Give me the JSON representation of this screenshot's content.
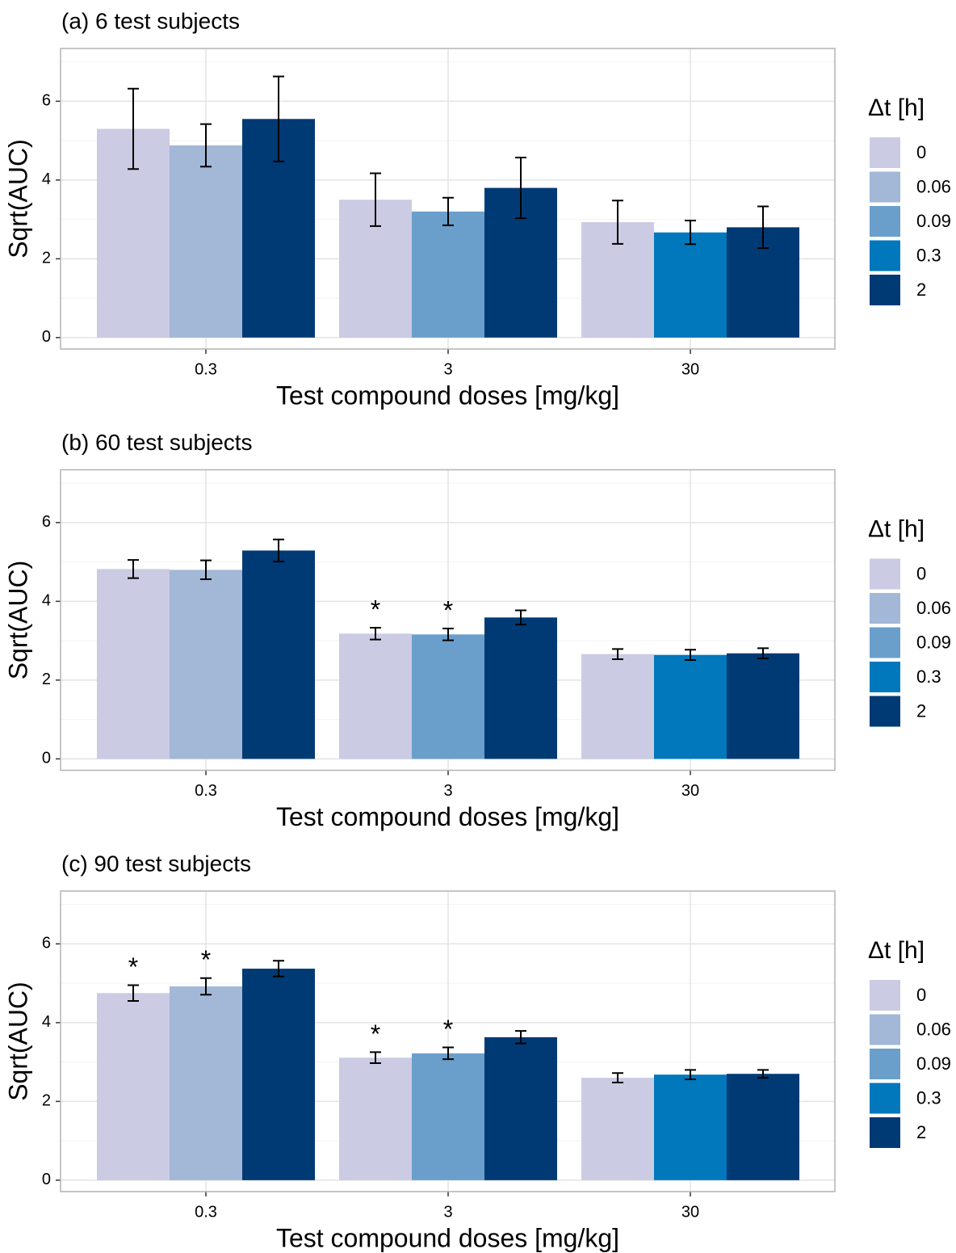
{
  "chart_data": [
    {
      "type": "bar",
      "title": "(a) 6 test subjects",
      "x_label": "Test compound doses [mg/kg]",
      "y_label": "Sqrt(AUC)",
      "legend_title": "Δt [h]",
      "legend": "right",
      "grid": true,
      "categories": [
        "0.3",
        "3",
        "30"
      ],
      "ylim": [
        -0.29,
        7.34
      ],
      "yticks": [
        0,
        2,
        4,
        6
      ],
      "minor_yticks": [
        1,
        3,
        5,
        7
      ],
      "series": [
        {
          "name": "0",
          "color": "#cbcbe3",
          "values": [
            5.3,
            3.5,
            2.93
          ],
          "errors": [
            1.02,
            0.67,
            0.55
          ],
          "significance": [
            null,
            null,
            null
          ]
        },
        {
          "name": "0.06",
          "color": "#a3b7d7",
          "values": [
            4.88,
            null,
            null
          ],
          "errors": [
            0.54,
            null,
            null
          ],
          "significance": [
            null,
            null,
            null
          ]
        },
        {
          "name": "0.09",
          "color": "#6a9fcc",
          "values": [
            null,
            3.2,
            null
          ],
          "errors": [
            null,
            0.35,
            null
          ],
          "significance": [
            null,
            null,
            null
          ]
        },
        {
          "name": "0.3",
          "color": "#0177bc",
          "values": [
            null,
            null,
            2.67
          ],
          "errors": [
            null,
            null,
            0.3
          ],
          "significance": [
            null,
            null,
            null
          ]
        },
        {
          "name": "2",
          "color": "#003a74",
          "values": [
            5.55,
            3.8,
            2.8
          ],
          "errors": [
            1.08,
            0.77,
            0.53
          ],
          "significance": [
            null,
            null,
            null
          ]
        }
      ]
    },
    {
      "type": "bar",
      "title": "(b) 60 test subjects",
      "x_label": "Test compound doses [mg/kg]",
      "y_label": "Sqrt(AUC)",
      "legend_title": "Δt [h]",
      "legend": "right",
      "grid": true,
      "categories": [
        "0.3",
        "3",
        "30"
      ],
      "ylim": [
        -0.29,
        7.34
      ],
      "yticks": [
        0,
        2,
        4,
        6
      ],
      "minor_yticks": [
        1,
        3,
        5,
        7
      ],
      "series": [
        {
          "name": "0",
          "color": "#cbcbe3",
          "values": [
            4.82,
            3.18,
            2.66
          ],
          "errors": [
            0.23,
            0.15,
            0.13
          ],
          "significance": [
            null,
            "*",
            null
          ]
        },
        {
          "name": "0.06",
          "color": "#a3b7d7",
          "values": [
            4.8,
            null,
            null
          ],
          "errors": [
            0.24,
            null,
            null
          ],
          "significance": [
            null,
            null,
            null
          ]
        },
        {
          "name": "0.09",
          "color": "#6a9fcc",
          "values": [
            null,
            3.16,
            null
          ],
          "errors": [
            null,
            0.15,
            null
          ],
          "significance": [
            null,
            "*",
            null
          ]
        },
        {
          "name": "0.3",
          "color": "#0177bc",
          "values": [
            null,
            null,
            2.64
          ],
          "errors": [
            null,
            null,
            0.13
          ],
          "significance": [
            null,
            null,
            null
          ]
        },
        {
          "name": "2",
          "color": "#003a74",
          "values": [
            5.29,
            3.59,
            2.68
          ],
          "errors": [
            0.28,
            0.18,
            0.13
          ],
          "significance": [
            null,
            null,
            null
          ]
        }
      ]
    },
    {
      "type": "bar",
      "title": "(c) 90 test subjects",
      "x_label": "Test compound doses [mg/kg]",
      "y_label": "Sqrt(AUC)",
      "legend_title": "Δt [h]",
      "legend": "right",
      "grid": true,
      "categories": [
        "0.3",
        "3",
        "30"
      ],
      "ylim": [
        -0.29,
        7.34
      ],
      "yticks": [
        0,
        2,
        4,
        6
      ],
      "minor_yticks": [
        1,
        3,
        5,
        7
      ],
      "series": [
        {
          "name": "0",
          "color": "#cbcbe3",
          "values": [
            4.75,
            3.11,
            2.6
          ],
          "errors": [
            0.2,
            0.14,
            0.12
          ],
          "significance": [
            "*",
            "*",
            null
          ]
        },
        {
          "name": "0.06",
          "color": "#a3b7d7",
          "values": [
            4.92,
            null,
            null
          ],
          "errors": [
            0.21,
            null,
            null
          ],
          "significance": [
            "*",
            null,
            null
          ]
        },
        {
          "name": "0.09",
          "color": "#6a9fcc",
          "values": [
            null,
            3.22,
            null
          ],
          "errors": [
            null,
            0.15,
            null
          ],
          "significance": [
            null,
            "*",
            null
          ]
        },
        {
          "name": "0.3",
          "color": "#0177bc",
          "values": [
            null,
            null,
            2.68
          ],
          "errors": [
            null,
            null,
            0.12
          ],
          "significance": [
            null,
            null,
            null
          ]
        },
        {
          "name": "2",
          "color": "#003a74",
          "values": [
            5.37,
            3.63,
            2.7
          ],
          "errors": [
            0.2,
            0.16,
            0.1
          ],
          "significance": [
            null,
            null,
            null
          ]
        }
      ]
    }
  ]
}
